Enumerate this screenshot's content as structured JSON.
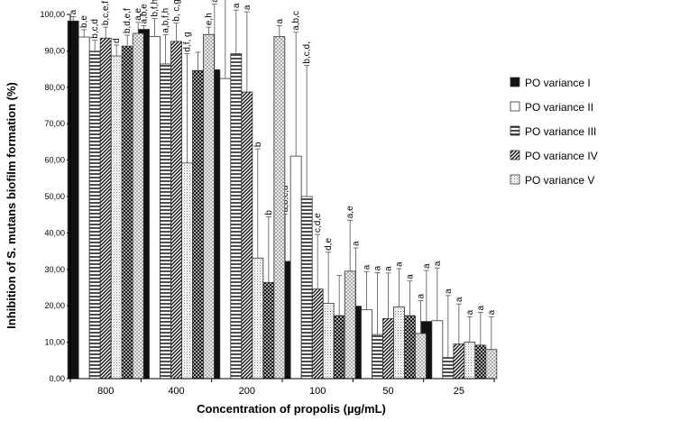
{
  "chart_data": {
    "type": "bar",
    "title": "",
    "xlabel": "Concentration of propolis (µg/mL)",
    "ylabel": "Inhibition of S. mutans biofilm formation (%)",
    "ylim": [
      0,
      100
    ],
    "y_ticks": [
      "0,00",
      "10,00",
      "20,00",
      "30,00",
      "40,00",
      "50,00",
      "60,00",
      "70,00",
      "80,00",
      "90,00",
      "100,00"
    ],
    "categories": [
      "800",
      "400",
      "200",
      "100",
      "50",
      "25"
    ],
    "legend_position": "right",
    "series": [
      {
        "name": "PO variance I",
        "pattern": "solid-black",
        "values": [
          98.2,
          95.9,
          84.8,
          32.2,
          19.9,
          15.7
        ],
        "errors": [
          1.2,
          1.0,
          18.0,
          13.0,
          16.0,
          14.0
        ],
        "labels": [
          "a",
          "a,b,e",
          "a",
          "a,b,c,d",
          "a",
          "a"
        ]
      },
      {
        "name": "PO variance II",
        "pattern": "white",
        "values": [
          93.8,
          93.9,
          82.4,
          61.1,
          18.9,
          15.9
        ],
        "errors": [
          2.0,
          5.0,
          22.0,
          34.0,
          10.5,
          14.5
        ],
        "labels": [
          "b,e",
          "b,f,h",
          "a",
          "a,b,c",
          "a",
          "a"
        ]
      },
      {
        "name": "PO variance III",
        "pattern": "horizontal-lines",
        "values": [
          89.9,
          86.4,
          89.2,
          50.0,
          12.1,
          5.8
        ],
        "errors": [
          3.0,
          8.0,
          12.0,
          36.0,
          17.0,
          17.0
        ],
        "labels": [
          "b,c,d",
          "a,b,f,h",
          "a",
          "b,c,d,",
          "a",
          "a"
        ]
      },
      {
        "name": "PO variance IV",
        "pattern": "diagonal-lines",
        "values": [
          93.5,
          92.6,
          78.7,
          24.6,
          16.5,
          9.5
        ],
        "errors": [
          3.0,
          5.0,
          22.0,
          15.0,
          12.5,
          11.0
        ],
        "labels": [
          "b,c,e,f",
          "b, c,g",
          "a",
          "c,d,e",
          "a",
          "a"
        ]
      },
      {
        "name": "PO variance V",
        "pattern": "light-stipple-a",
        "values": [
          88.6,
          59.2,
          33.1,
          20.7,
          19.7,
          10.0
        ],
        "errors": [
          3.0,
          30.0,
          30.0,
          14.0,
          10.5,
          7.0
        ],
        "labels": [
          "d",
          "d,f, g",
          "b",
          "d,e",
          "a",
          "a"
        ]
      },
      {
        "name": "",
        "pattern": "crosshatch",
        "values": [
          91.3,
          84.6,
          26.4,
          17.3,
          17.3,
          9.2
        ],
        "errors": [
          3.0,
          5.0,
          18.0,
          11.0,
          9.5,
          9.0
        ],
        "labels": [
          "b,d,e,f",
          "",
          "b",
          "",
          "a",
          "a"
        ]
      },
      {
        "name": "",
        "pattern": "light-stipple-b",
        "values": [
          94.8,
          94.5,
          93.9,
          29.5,
          12.4,
          8.0
        ],
        "errors": [
          3.0,
          2.0,
          3.0,
          14.0,
          9.0,
          9.0
        ],
        "labels": [
          "a,e",
          "e,h",
          "a",
          "a,e",
          "a",
          "a"
        ]
      }
    ]
  }
}
